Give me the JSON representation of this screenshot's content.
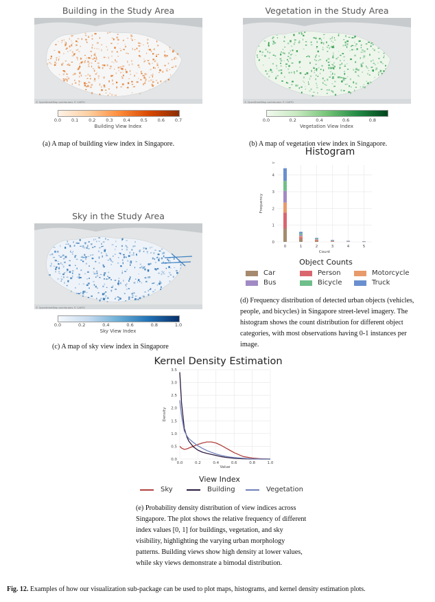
{
  "panel_a": {
    "map_title": "Building in the Study Area",
    "attribution": "© OpenStreetMap contributors © CARTO",
    "colorbar_label": "Building View Index",
    "colorbar_ticks": [
      "0.0",
      "0.1",
      "0.2",
      "0.3",
      "0.4",
      "0.5",
      "0.6",
      "0.7"
    ],
    "colors": {
      "low": "#fdf2e6",
      "high": "#8c2d04"
    },
    "caption": "(a) A map of building view index in Singapore."
  },
  "panel_b": {
    "map_title": "Vegetation in the Study Area",
    "attribution": "© OpenStreetMap contributors © CARTO",
    "colorbar_label": "Vegetation View Index",
    "colorbar_ticks": [
      "0.0",
      "0.2",
      "0.4",
      "0.6",
      "0.8"
    ],
    "colors": {
      "low": "#f1f9ee",
      "high": "#00441b"
    },
    "caption": "(b) A map of vegetation view index in Singapore."
  },
  "panel_c": {
    "map_title": "Sky in the Study Area",
    "attribution": "© OpenStreetMap contributors © CARTO",
    "colorbar_label": "Sky View Index",
    "colorbar_ticks": [
      "0.0",
      "0.2",
      "0.4",
      "0.6",
      "0.8",
      "1.0"
    ],
    "colors": {
      "low": "#f4f8fc",
      "high": "#08306b"
    },
    "caption": "(c) A map of sky view index in Singapore"
  },
  "panel_d": {
    "caption": "(d) Frequency distribution of detected urban objects (vehicles, people, and bicycles) in Singapore street-level imagery. The histogram shows the count distribution for different object categories, with most observations having 0-1 instances per image.",
    "legend_title": "Object Counts",
    "legend": [
      {
        "name": "Car",
        "color": "#a68a6d"
      },
      {
        "name": "Person",
        "color": "#d9666f"
      },
      {
        "name": "Motorcycle",
        "color": "#e89a6a"
      },
      {
        "name": "Bus",
        "color": "#a18ac4"
      },
      {
        "name": "Bicycle",
        "color": "#6fbf8a"
      },
      {
        "name": "Truck",
        "color": "#6a8fcf"
      }
    ]
  },
  "panel_e": {
    "caption": "(e) Probability density distribution of view indices across Singapore. The plot shows the relative frequency of different index values [0, 1] for buildings, vegetation, and sky visibility, highlighting the varying urban morphology patterns. Building views show high density at lower values, while sky views demonstrate a bimodal distribution.",
    "legend_title": "View Index",
    "legend": [
      {
        "name": "Sky",
        "color": "#b0413e"
      },
      {
        "name": "Building",
        "color": "#2b1a3f"
      },
      {
        "name": "Vegetation",
        "color": "#6f7fb8"
      }
    ]
  },
  "figure_caption": {
    "label": "Fig. 12.",
    "text": "Examples of how our visualization sub-package can be used to plot maps, histograms, and kernel density estimation plots."
  },
  "chart_data": [
    {
      "type": "bar",
      "title": "Histogram",
      "xlabel": "Count",
      "ylabel": "Frequency",
      "y_multiplier_label": "1e",
      "categories": [
        "0",
        "1",
        "2",
        "3",
        "4",
        "5"
      ],
      "x_ticks": [
        "0",
        "1",
        "2",
        "3",
        "4",
        "5"
      ],
      "y_ticks": [
        "0",
        "1",
        "2",
        "3",
        "4"
      ],
      "ylim": [
        0,
        4.6
      ],
      "stacked": true,
      "series": [
        {
          "name": "Car",
          "color": "#a68a6d",
          "values": [
            0.8,
            0.18,
            0.06,
            0.03,
            0.01,
            0.005
          ]
        },
        {
          "name": "Person",
          "color": "#d9666f",
          "values": [
            0.95,
            0.1,
            0.04,
            0.02,
            0.01,
            0.005
          ]
        },
        {
          "name": "Motorcycle",
          "color": "#e89a6a",
          "values": [
            0.6,
            0.06,
            0.03,
            0.01,
            0.01,
            0.005
          ]
        },
        {
          "name": "Bus",
          "color": "#a18ac4",
          "values": [
            0.7,
            0.08,
            0.03,
            0.01,
            0.01,
            0.005
          ]
        },
        {
          "name": "Bicycle",
          "color": "#6fbf8a",
          "values": [
            0.6,
            0.08,
            0.04,
            0.02,
            0.01,
            0.01
          ]
        },
        {
          "name": "Truck",
          "color": "#6a8fcf",
          "values": [
            0.75,
            0.1,
            0.04,
            0.03,
            0.02,
            0.01
          ]
        }
      ]
    },
    {
      "type": "line",
      "title": "Kernel Density Estimation",
      "xlabel": "Value",
      "ylabel": "Density",
      "x_ticks": [
        "0.0",
        "0.2",
        "0.4",
        "0.6",
        "0.8",
        "1.0"
      ],
      "y_ticks": [
        "0.0",
        "0.5",
        "1.0",
        "1.5",
        "2.0",
        "2.5",
        "3.0",
        "3.5"
      ],
      "xlim": [
        0,
        1.0
      ],
      "ylim": [
        0,
        3.5
      ],
      "x": [
        0.0,
        0.02,
        0.05,
        0.08,
        0.1,
        0.15,
        0.2,
        0.25,
        0.3,
        0.35,
        0.4,
        0.45,
        0.5,
        0.55,
        0.6,
        0.7,
        0.8,
        0.9,
        1.0
      ],
      "series": [
        {
          "name": "Sky",
          "color": "#b0413e",
          "values": [
            0.5,
            0.43,
            0.38,
            0.4,
            0.43,
            0.5,
            0.57,
            0.63,
            0.67,
            0.67,
            0.63,
            0.55,
            0.45,
            0.35,
            0.25,
            0.1,
            0.04,
            0.01,
            0.0
          ]
        },
        {
          "name": "Building",
          "color": "#2b1a3f",
          "values": [
            3.4,
            2.2,
            1.2,
            0.85,
            0.7,
            0.48,
            0.35,
            0.27,
            0.22,
            0.18,
            0.14,
            0.1,
            0.07,
            0.05,
            0.03,
            0.01,
            0.005,
            0.0,
            0.0
          ]
        },
        {
          "name": "Vegetation",
          "color": "#6f7fb8",
          "values": [
            2.3,
            1.7,
            1.1,
            0.9,
            0.8,
            0.65,
            0.52,
            0.42,
            0.33,
            0.26,
            0.2,
            0.15,
            0.11,
            0.08,
            0.06,
            0.03,
            0.01,
            0.0,
            0.0
          ]
        }
      ]
    }
  ]
}
